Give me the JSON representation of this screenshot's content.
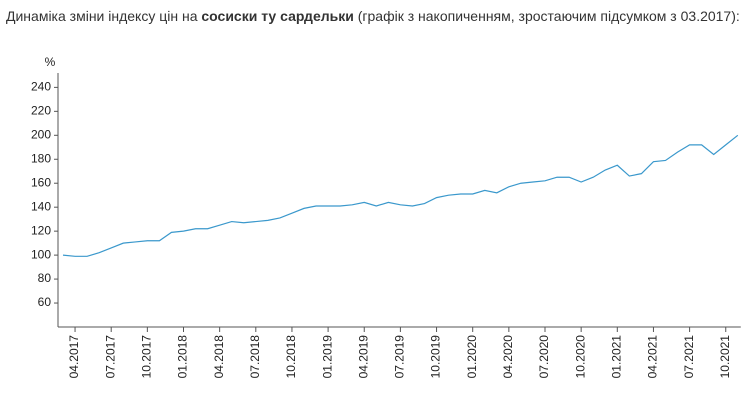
{
  "chart_data": {
    "type": "line",
    "title": {
      "text": "Динаміка зміни індексу цін на",
      "bold": "сосиски ту сардельки",
      "rest": "(графік з накопиченням, зростаючим підсумком з 03.2017):"
    },
    "ylabel": "%",
    "categories": [
      null,
      "04.2017",
      null,
      null,
      "07.2017",
      null,
      null,
      "10.2017",
      null,
      null,
      "01.2018",
      null,
      null,
      "04.2018",
      null,
      null,
      "07.2018",
      null,
      null,
      "10.2018",
      null,
      null,
      "01.2019",
      null,
      null,
      "04.2019",
      null,
      null,
      "07.2019",
      null,
      null,
      "10.2019",
      null,
      null,
      "01.2020",
      null,
      null,
      "04.2020",
      null,
      null,
      "07.2020",
      null,
      null,
      "10.2020",
      null,
      null,
      "01.2021",
      null,
      null,
      "04.2021",
      null,
      null,
      "07.2021",
      null,
      null,
      "10.2021",
      null
    ],
    "series": [
      {
        "color": "#3a98cc",
        "values": [
          100,
          99,
          99,
          102,
          106,
          110,
          111,
          112,
          112,
          119,
          120,
          122,
          122,
          125,
          128,
          127,
          128,
          129,
          131,
          135,
          139,
          141,
          141,
          141,
          142,
          144,
          141,
          144,
          142,
          141,
          143,
          148,
          150,
          151,
          151,
          154,
          152,
          157,
          160,
          161,
          162,
          165,
          165,
          161,
          165,
          171,
          175,
          166,
          168,
          178,
          179,
          186,
          192,
          192,
          184,
          192,
          200
        ]
      }
    ],
    "ylim": [
      40,
      252
    ],
    "yticks": [
      60,
      80,
      100,
      120,
      140,
      160,
      180,
      200,
      220,
      240
    ],
    "grid": false
  }
}
